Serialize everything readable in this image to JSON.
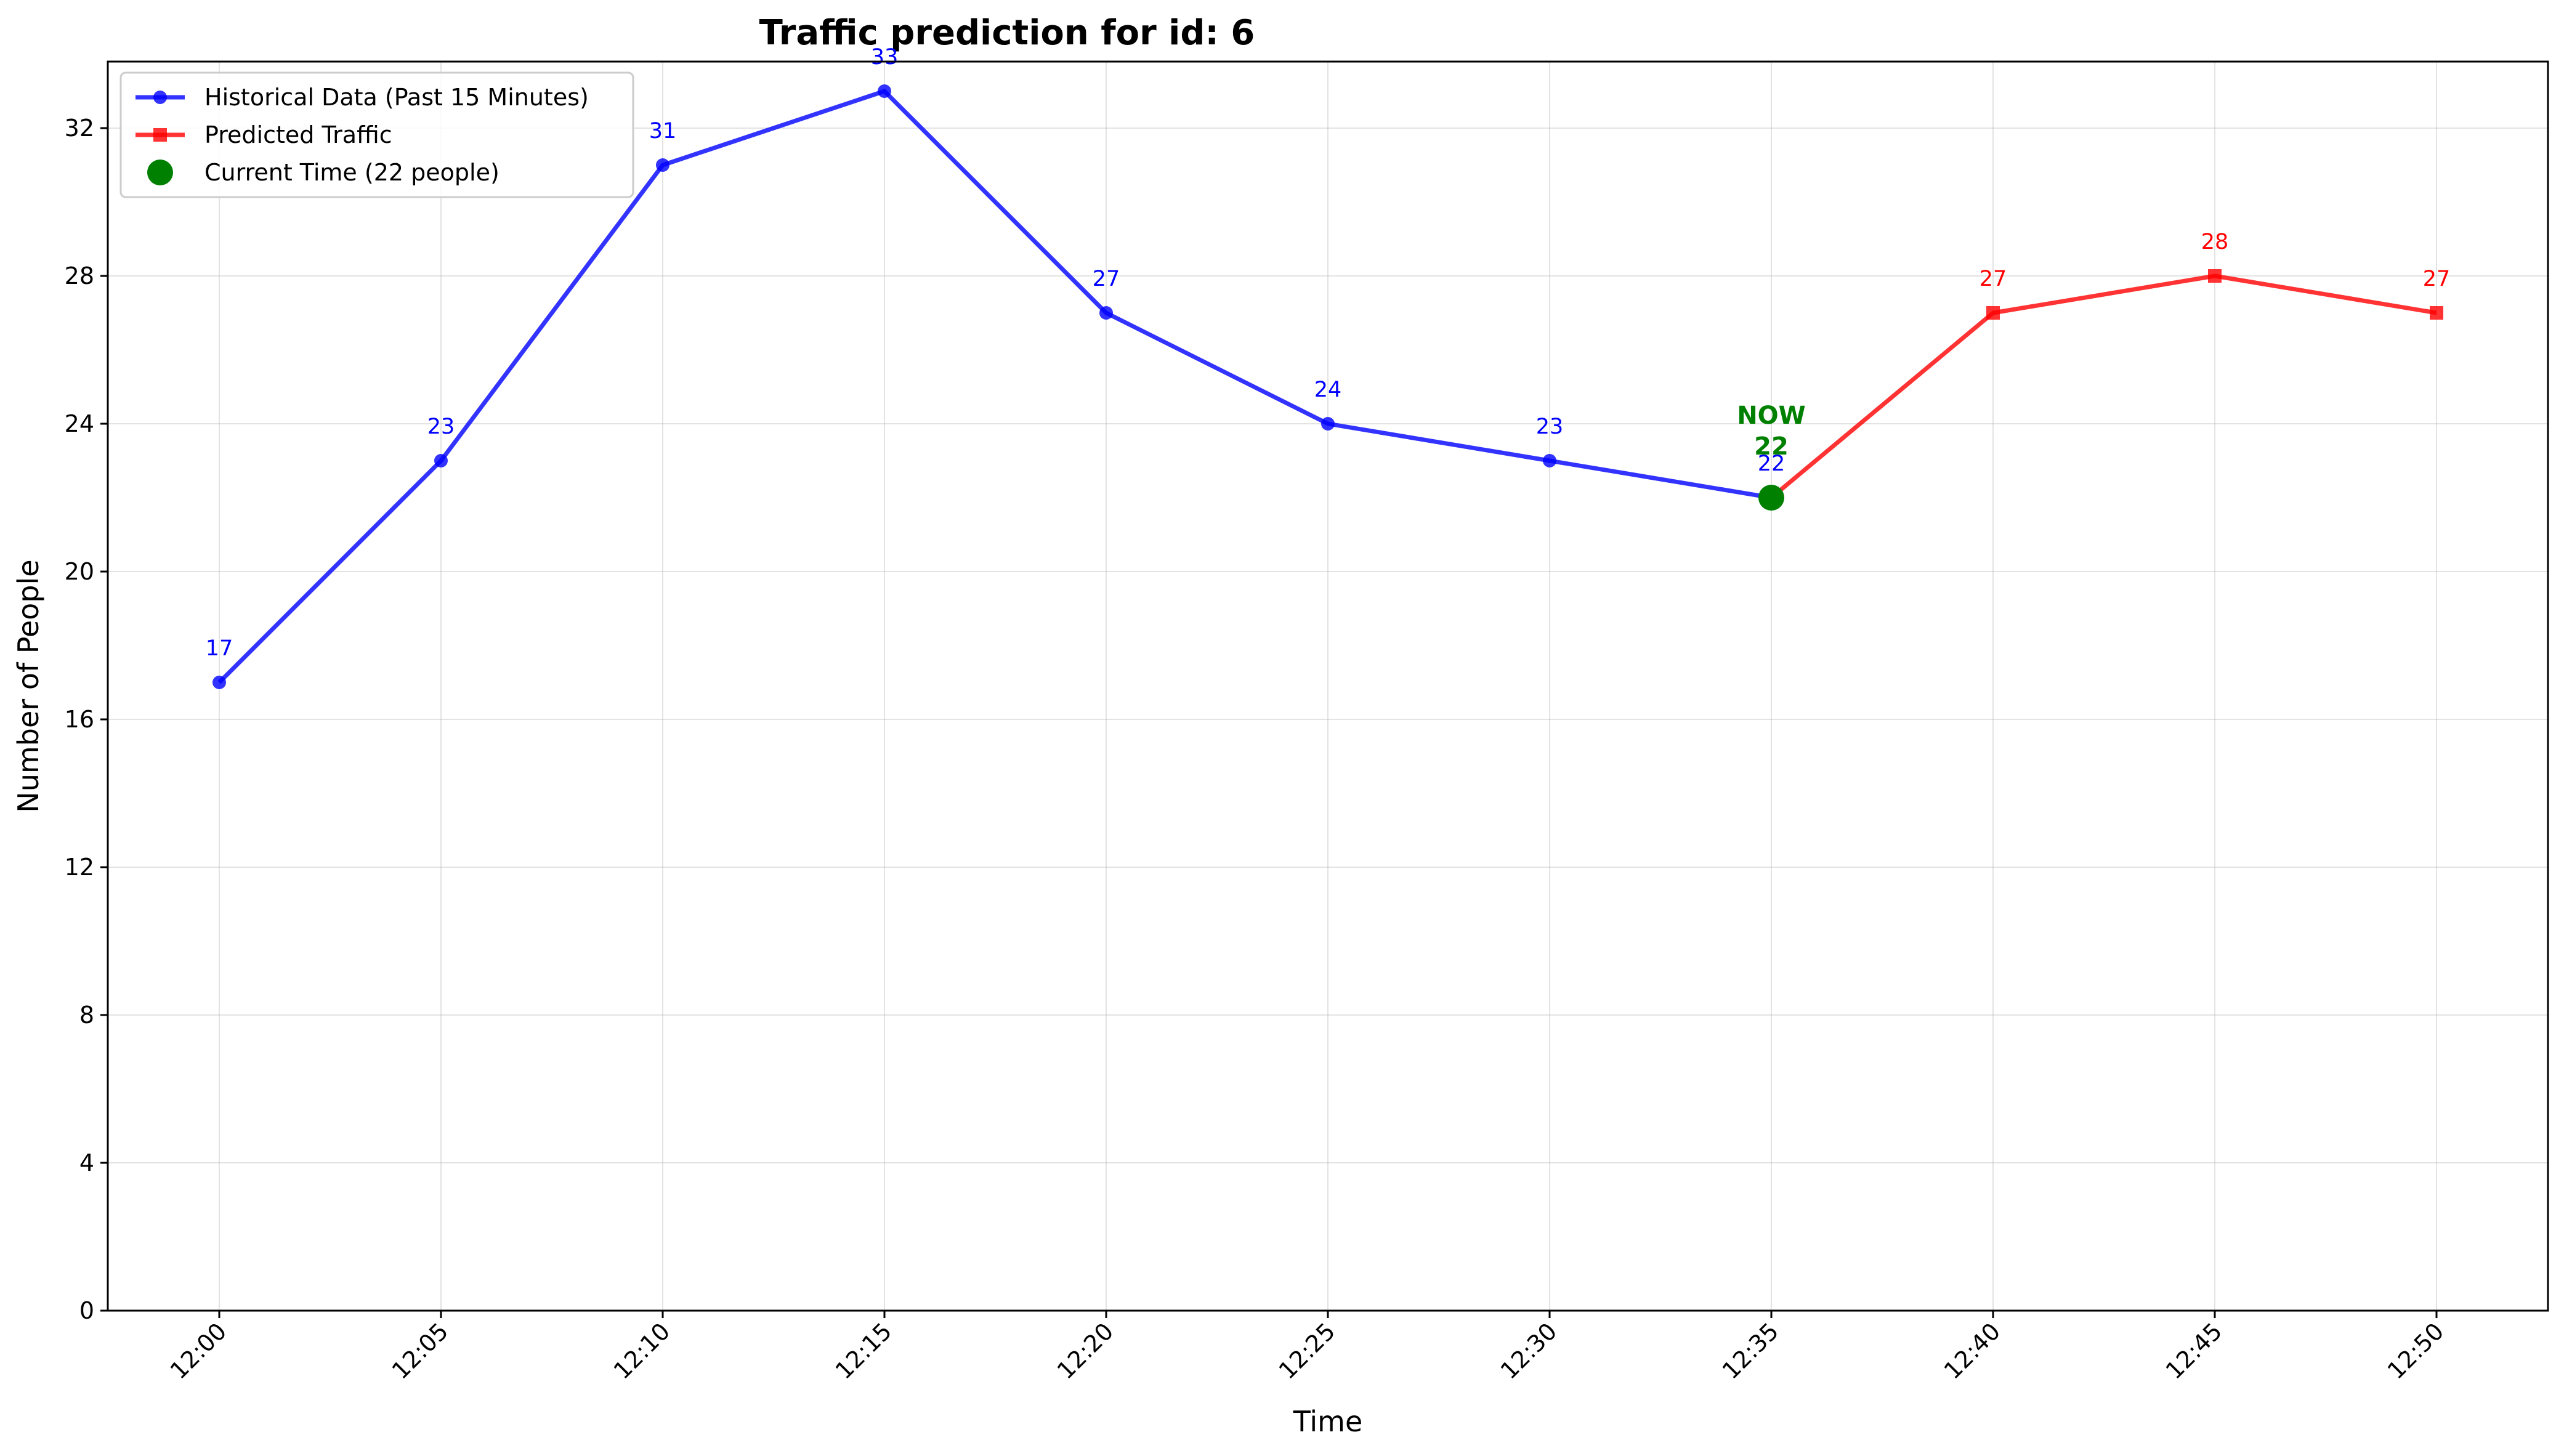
{
  "chart_data": {
    "type": "line",
    "title": "Traffic prediction for id: 6",
    "xlabel": "Time",
    "ylabel": "Number of People",
    "categories": [
      "12:00",
      "12:05",
      "12:10",
      "12:15",
      "12:20",
      "12:25",
      "12:30",
      "12:35",
      "12:40",
      "12:45",
      "12:50"
    ],
    "ylim": [
      0,
      33.8
    ],
    "yticks": [
      0,
      4,
      8,
      12,
      16,
      20,
      24,
      28,
      32
    ],
    "grid": true,
    "legend_position": "top-left",
    "series": [
      {
        "name": "Historical Data (Past 15 Minutes)",
        "color": "#0000ff",
        "marker": "circle",
        "x": [
          "12:00",
          "12:05",
          "12:10",
          "12:15",
          "12:20",
          "12:25",
          "12:30",
          "12:35"
        ],
        "values": [
          17,
          23,
          31,
          33,
          27,
          24,
          23,
          22
        ]
      },
      {
        "name": "Predicted Traffic",
        "color": "#ff0000",
        "marker": "square",
        "x": [
          "12:35",
          "12:40",
          "12:45",
          "12:50"
        ],
        "values": [
          22,
          27,
          28,
          27
        ],
        "labeled_values": [
          27,
          28,
          27
        ]
      },
      {
        "name": "Current Time (22 people)",
        "color": "#008000",
        "marker": "circle",
        "x": [
          "12:35"
        ],
        "values": [
          22
        ]
      }
    ],
    "annotations": [
      {
        "text": "NOW",
        "x": "12:35",
        "color": "#008000"
      },
      {
        "text": "22",
        "x": "12:35",
        "color": "#008000"
      }
    ]
  }
}
